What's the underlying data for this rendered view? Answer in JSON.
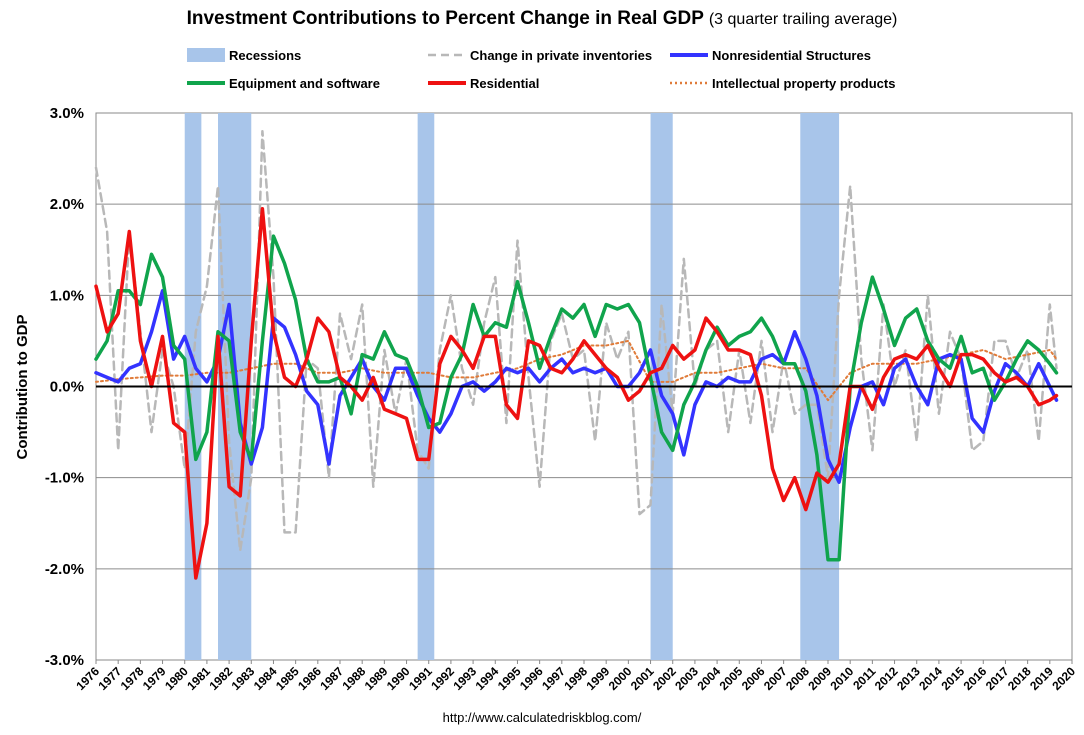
{
  "chart_data": {
    "type": "line",
    "title": "Investment Contributions to Percent Change in Real GDP",
    "subtitle": "(3 quarter trailing average)",
    "ylabel": "Contribution to GDP",
    "ylim": [
      -3.0,
      3.0
    ],
    "yticks": [
      "3.0%",
      "2.0%",
      "1.0%",
      "0.0%",
      "-1.0%",
      "-2.0%",
      "-3.0%"
    ],
    "xlim": [
      1976.0,
      2020.0
    ],
    "xticks": [
      "1976",
      "1977",
      "1978",
      "1979",
      "1980",
      "1981",
      "1982",
      "1983",
      "1984",
      "1985",
      "1986",
      "1987",
      "1988",
      "1989",
      "1990",
      "1991",
      "1992",
      "1993",
      "1994",
      "1995",
      "1996",
      "1997",
      "1998",
      "1999",
      "2000",
      "2001",
      "2002",
      "2003",
      "2004",
      "2005",
      "2006",
      "2007",
      "2008",
      "2009",
      "2010",
      "2011",
      "2012",
      "2013",
      "2014",
      "2015",
      "2016",
      "2017",
      "2018",
      "2019",
      "2020"
    ],
    "grid": "horizontal",
    "legend_position": "top",
    "recessions_label": "Recessions",
    "recessions": [
      [
        1980.0,
        1980.75
      ],
      [
        1981.5,
        1983.0
      ],
      [
        1990.5,
        1991.25
      ],
      [
        2001.0,
        2002.0
      ],
      [
        2007.75,
        2009.5
      ]
    ],
    "source": "http://www.calculatedriskblog.com/",
    "series": [
      {
        "name": "Change in private inventories",
        "color": "#b8b8b8",
        "style": "dashed",
        "x": [
          1976.0,
          1976.5,
          1977.0,
          1977.5,
          1978.0,
          1978.5,
          1979.0,
          1979.5,
          1980.0,
          1980.5,
          1981.0,
          1981.5,
          1982.0,
          1982.5,
          1983.0,
          1983.5,
          1984.0,
          1984.5,
          1985.0,
          1985.5,
          1986.0,
          1986.5,
          1987.0,
          1987.5,
          1988.0,
          1988.5,
          1989.0,
          1989.5,
          1990.0,
          1990.5,
          1991.0,
          1991.5,
          1992.0,
          1992.5,
          1993.0,
          1993.5,
          1994.0,
          1994.5,
          1995.0,
          1995.5,
          1996.0,
          1996.5,
          1997.0,
          1997.5,
          1998.0,
          1998.5,
          1999.0,
          1999.5,
          2000.0,
          2000.5,
          2001.0,
          2001.5,
          2002.0,
          2002.5,
          2003.0,
          2003.5,
          2004.0,
          2004.5,
          2005.0,
          2005.5,
          2006.0,
          2006.5,
          2007.0,
          2007.5,
          2008.0,
          2008.5,
          2009.0,
          2009.5,
          2010.0,
          2010.5,
          2011.0,
          2011.5,
          2012.0,
          2012.5,
          2013.0,
          2013.5,
          2014.0,
          2014.5,
          2015.0,
          2015.5,
          2016.0,
          2016.5,
          2017.0,
          2017.5,
          2018.0,
          2018.5,
          2019.0,
          2019.3
        ],
        "values": [
          2.4,
          1.7,
          -0.7,
          1.7,
          0.6,
          -0.5,
          0.4,
          0.0,
          -0.9,
          0.6,
          1.1,
          2.2,
          -0.6,
          -1.8,
          -1.0,
          2.8,
          1.2,
          -1.6,
          -1.6,
          0.3,
          0.2,
          -1.0,
          0.8,
          0.3,
          0.9,
          -1.1,
          0.4,
          -0.3,
          0.3,
          -0.7,
          -0.9,
          0.4,
          1.0,
          0.2,
          -0.2,
          0.7,
          1.2,
          -0.4,
          1.6,
          0.1,
          -1.1,
          0.5,
          0.8,
          0.3,
          0.4,
          -0.6,
          0.7,
          0.3,
          0.6,
          -1.4,
          -1.3,
          0.9,
          -0.3,
          1.4,
          0.0,
          0.4,
          0.5,
          -0.5,
          0.4,
          -0.4,
          0.5,
          -0.5,
          0.3,
          -0.3,
          -0.2,
          -0.2,
          -1.0,
          1.0,
          2.2,
          0.3,
          -0.7,
          0.9,
          0.0,
          0.4,
          -0.6,
          1.0,
          -0.3,
          0.6,
          0.3,
          -0.7,
          -0.6,
          0.5,
          0.5,
          0.1,
          0.4,
          -0.6,
          0.9,
          0.2
        ]
      },
      {
        "name": "Nonresidential Structures",
        "color": "#3333ff",
        "style": "solid",
        "x": [
          1976.0,
          1976.5,
          1977.0,
          1977.5,
          1978.0,
          1978.5,
          1979.0,
          1979.5,
          1980.0,
          1980.5,
          1981.0,
          1981.5,
          1982.0,
          1982.5,
          1983.0,
          1983.5,
          1984.0,
          1984.5,
          1985.0,
          1985.5,
          1986.0,
          1986.5,
          1987.0,
          1987.5,
          1988.0,
          1988.5,
          1989.0,
          1989.5,
          1990.0,
          1990.5,
          1991.0,
          1991.5,
          1992.0,
          1992.5,
          1993.0,
          1993.5,
          1994.0,
          1994.5,
          1995.0,
          1995.5,
          1996.0,
          1996.5,
          1997.0,
          1997.5,
          1998.0,
          1998.5,
          1999.0,
          1999.5,
          2000.0,
          2000.5,
          2001.0,
          2001.5,
          2002.0,
          2002.5,
          2003.0,
          2003.5,
          2004.0,
          2004.5,
          2005.0,
          2005.5,
          2006.0,
          2006.5,
          2007.0,
          2007.5,
          2008.0,
          2008.5,
          2009.0,
          2009.5,
          2010.0,
          2010.5,
          2011.0,
          2011.5,
          2012.0,
          2012.5,
          2013.0,
          2013.5,
          2014.0,
          2014.5,
          2015.0,
          2015.5,
          2016.0,
          2016.5,
          2017.0,
          2017.5,
          2018.0,
          2018.5,
          2019.0,
          2019.3
        ],
        "values": [
          0.15,
          0.1,
          0.05,
          0.2,
          0.25,
          0.6,
          1.05,
          0.3,
          0.55,
          0.2,
          0.05,
          0.3,
          0.9,
          -0.4,
          -0.85,
          -0.45,
          0.75,
          0.65,
          0.35,
          -0.05,
          -0.2,
          -0.85,
          -0.1,
          0.1,
          0.3,
          0.0,
          -0.15,
          0.2,
          0.2,
          -0.1,
          -0.35,
          -0.5,
          -0.3,
          0.0,
          0.05,
          -0.05,
          0.05,
          0.2,
          0.15,
          0.2,
          0.05,
          0.2,
          0.3,
          0.15,
          0.2,
          0.15,
          0.2,
          0.0,
          0.0,
          0.15,
          0.4,
          -0.1,
          -0.3,
          -0.75,
          -0.2,
          0.05,
          0.0,
          0.1,
          0.05,
          0.05,
          0.3,
          0.35,
          0.25,
          0.6,
          0.3,
          -0.1,
          -0.8,
          -1.05,
          -0.45,
          0.0,
          0.05,
          -0.2,
          0.2,
          0.3,
          0.0,
          -0.2,
          0.3,
          0.35,
          0.3,
          -0.35,
          -0.5,
          -0.05,
          0.25,
          0.15,
          0.0,
          0.25,
          0.0,
          -0.15
        ]
      },
      {
        "name": "Equipment and software",
        "color": "#10a44c",
        "style": "solid",
        "x": [
          1976.0,
          1976.5,
          1977.0,
          1977.5,
          1978.0,
          1978.5,
          1979.0,
          1979.5,
          1980.0,
          1980.5,
          1981.0,
          1981.5,
          1982.0,
          1982.5,
          1983.0,
          1983.5,
          1984.0,
          1984.5,
          1985.0,
          1985.5,
          1986.0,
          1986.5,
          1987.0,
          1987.5,
          1988.0,
          1988.5,
          1989.0,
          1989.5,
          1990.0,
          1990.5,
          1991.0,
          1991.5,
          1992.0,
          1992.5,
          1993.0,
          1993.5,
          1994.0,
          1994.5,
          1995.0,
          1995.5,
          1996.0,
          1996.5,
          1997.0,
          1997.5,
          1998.0,
          1998.5,
          1999.0,
          1999.5,
          2000.0,
          2000.5,
          2001.0,
          2001.5,
          2002.0,
          2002.5,
          2003.0,
          2003.5,
          2004.0,
          2004.5,
          2005.0,
          2005.5,
          2006.0,
          2006.5,
          2007.0,
          2007.5,
          2008.0,
          2008.5,
          2009.0,
          2009.5,
          2010.0,
          2010.5,
          2011.0,
          2011.5,
          2012.0,
          2012.5,
          2013.0,
          2013.5,
          2014.0,
          2014.5,
          2015.0,
          2015.5,
          2016.0,
          2016.5,
          2017.0,
          2017.5,
          2018.0,
          2018.5,
          2019.0,
          2019.3
        ],
        "values": [
          0.3,
          0.5,
          1.05,
          1.05,
          0.9,
          1.45,
          1.2,
          0.45,
          0.3,
          -0.8,
          -0.5,
          0.6,
          0.5,
          -0.5,
          -0.8,
          0.5,
          1.65,
          1.35,
          0.95,
          0.3,
          0.05,
          0.05,
          0.1,
          -0.3,
          0.35,
          0.3,
          0.6,
          0.35,
          0.3,
          0.0,
          -0.45,
          -0.4,
          0.1,
          0.35,
          0.9,
          0.55,
          0.7,
          0.65,
          1.15,
          0.7,
          0.2,
          0.55,
          0.85,
          0.75,
          0.9,
          0.55,
          0.9,
          0.85,
          0.9,
          0.7,
          0.1,
          -0.5,
          -0.7,
          -0.2,
          0.05,
          0.4,
          0.65,
          0.45,
          0.55,
          0.6,
          0.75,
          0.55,
          0.25,
          0.25,
          -0.05,
          -0.75,
          -1.9,
          -1.9,
          0.0,
          0.7,
          1.2,
          0.85,
          0.45,
          0.75,
          0.85,
          0.5,
          0.3,
          0.2,
          0.55,
          0.15,
          0.2,
          -0.15,
          0.05,
          0.3,
          0.5,
          0.4,
          0.25,
          0.15
        ]
      },
      {
        "name": "Residential",
        "color": "#ee1111",
        "style": "solid",
        "x": [
          1976.0,
          1976.5,
          1977.0,
          1977.5,
          1978.0,
          1978.5,
          1979.0,
          1979.5,
          1980.0,
          1980.5,
          1981.0,
          1981.5,
          1982.0,
          1982.5,
          1983.0,
          1983.5,
          1984.0,
          1984.5,
          1985.0,
          1985.5,
          1986.0,
          1986.5,
          1987.0,
          1987.5,
          1988.0,
          1988.5,
          1989.0,
          1989.5,
          1990.0,
          1990.5,
          1991.0,
          1991.5,
          1992.0,
          1992.5,
          1993.0,
          1993.5,
          1994.0,
          1994.5,
          1995.0,
          1995.5,
          1996.0,
          1996.5,
          1997.0,
          1997.5,
          1998.0,
          1998.5,
          1999.0,
          1999.5,
          2000.0,
          2000.5,
          2001.0,
          2001.5,
          2002.0,
          2002.5,
          2003.0,
          2003.5,
          2004.0,
          2004.5,
          2005.0,
          2005.5,
          2006.0,
          2006.5,
          2007.0,
          2007.5,
          2008.0,
          2008.5,
          2009.0,
          2009.5,
          2010.0,
          2010.5,
          2011.0,
          2011.5,
          2012.0,
          2012.5,
          2013.0,
          2013.5,
          2014.0,
          2014.5,
          2015.0,
          2015.5,
          2016.0,
          2016.5,
          2017.0,
          2017.5,
          2018.0,
          2018.5,
          2019.0,
          2019.3
        ],
        "values": [
          1.1,
          0.6,
          0.8,
          1.7,
          0.5,
          0.0,
          0.55,
          -0.4,
          -0.5,
          -2.1,
          -1.5,
          0.55,
          -1.1,
          -1.2,
          0.5,
          1.95,
          0.6,
          0.1,
          0.0,
          0.3,
          0.75,
          0.6,
          0.1,
          0.0,
          -0.15,
          0.1,
          -0.25,
          -0.3,
          -0.35,
          -0.8,
          -0.8,
          0.25,
          0.55,
          0.4,
          0.2,
          0.55,
          0.55,
          -0.2,
          -0.35,
          0.5,
          0.45,
          0.2,
          0.15,
          0.3,
          0.5,
          0.35,
          0.2,
          0.1,
          -0.15,
          -0.05,
          0.15,
          0.2,
          0.45,
          0.3,
          0.4,
          0.75,
          0.6,
          0.4,
          0.4,
          0.35,
          -0.1,
          -0.9,
          -1.25,
          -1.0,
          -1.35,
          -0.95,
          -1.05,
          -0.85,
          0.0,
          0.0,
          -0.25,
          0.1,
          0.3,
          0.35,
          0.3,
          0.45,
          0.2,
          0.0,
          0.35,
          0.35,
          0.3,
          0.15,
          0.05,
          0.1,
          0.0,
          -0.2,
          -0.15,
          -0.1
        ]
      },
      {
        "name": "Intellectual property products",
        "color": "#e07b39",
        "style": "dotted",
        "x": [
          1976.0,
          1977.0,
          1978.0,
          1979.0,
          1980.0,
          1981.0,
          1982.0,
          1983.0,
          1984.0,
          1985.0,
          1986.0,
          1987.0,
          1988.0,
          1989.0,
          1990.0,
          1991.0,
          1992.0,
          1993.0,
          1994.0,
          1995.0,
          1996.0,
          1997.0,
          1998.0,
          1999.0,
          2000.0,
          2001.0,
          2002.0,
          2003.0,
          2004.0,
          2005.0,
          2006.0,
          2007.0,
          2008.0,
          2009.0,
          2010.0,
          2011.0,
          2012.0,
          2013.0,
          2014.0,
          2015.0,
          2016.0,
          2017.0,
          2018.0,
          2019.0,
          2019.3
        ],
        "values": [
          0.05,
          0.08,
          0.1,
          0.12,
          0.12,
          0.15,
          0.15,
          0.2,
          0.25,
          0.25,
          0.15,
          0.15,
          0.2,
          0.15,
          0.15,
          0.15,
          0.1,
          0.1,
          0.15,
          0.2,
          0.3,
          0.35,
          0.45,
          0.45,
          0.5,
          0.05,
          0.05,
          0.15,
          0.15,
          0.2,
          0.25,
          0.2,
          0.2,
          -0.15,
          0.15,
          0.25,
          0.25,
          0.25,
          0.3,
          0.35,
          0.4,
          0.3,
          0.35,
          0.4,
          0.3
        ]
      }
    ]
  }
}
